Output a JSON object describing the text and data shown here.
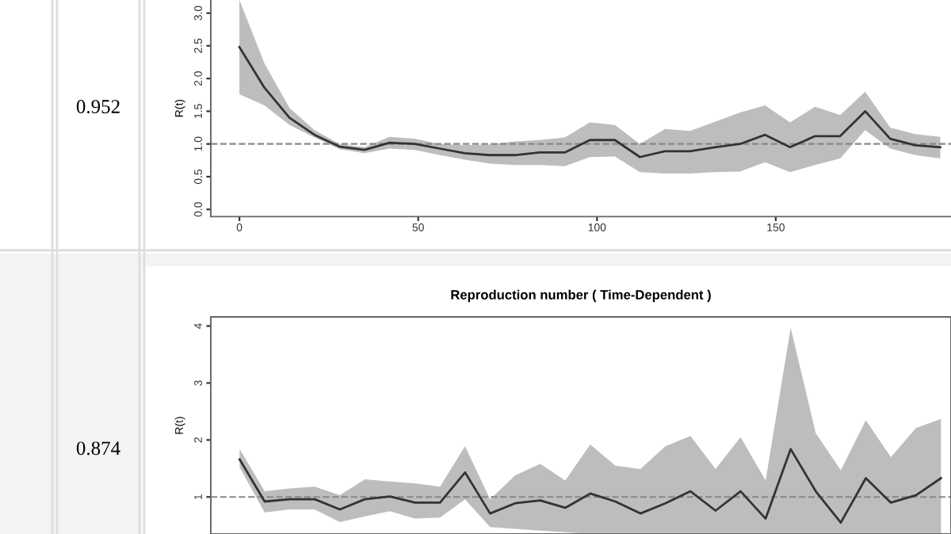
{
  "chart_data": [
    {
      "type": "line",
      "ylabel": "R(t)",
      "annotations": [
        "0.952"
      ],
      "x": [
        0,
        7,
        14,
        21,
        28,
        35,
        42,
        49,
        56,
        63,
        70,
        77,
        84,
        91,
        98,
        105,
        112,
        119,
        126,
        133,
        140,
        147,
        154,
        161,
        168,
        175,
        182,
        189,
        196
      ],
      "series": [
        {
          "color": "#333333",
          "values": [
            2.48,
            1.86,
            1.4,
            1.14,
            0.96,
            0.91,
            1.02,
            1.0,
            0.93,
            0.86,
            0.83,
            0.83,
            0.87,
            0.87,
            1.06,
            1.06,
            0.8,
            0.89,
            0.89,
            0.95,
            1.0,
            1.14,
            0.95,
            1.12,
            1.12,
            1.5,
            1.08,
            0.98,
            0.95
          ],
          "lower": [
            1.76,
            1.59,
            1.29,
            1.1,
            0.92,
            0.86,
            0.93,
            0.91,
            0.83,
            0.76,
            0.7,
            0.68,
            0.68,
            0.66,
            0.8,
            0.81,
            0.57,
            0.55,
            0.55,
            0.57,
            0.58,
            0.72,
            0.57,
            0.68,
            0.78,
            1.21,
            0.93,
            0.83,
            0.78
          ],
          "upper": [
            3.2,
            2.23,
            1.55,
            1.21,
            1.0,
            0.95,
            1.11,
            1.08,
            1.0,
            0.98,
            0.99,
            1.04,
            1.06,
            1.1,
            1.33,
            1.29,
            1.0,
            1.23,
            1.2,
            1.34,
            1.48,
            1.59,
            1.33,
            1.57,
            1.44,
            1.8,
            1.25,
            1.15,
            1.11
          ]
        }
      ],
      "xlim": [
        -8,
        199
      ],
      "xticks": [
        0,
        50,
        100,
        150
      ],
      "ylim": [
        -0.11,
        3.2
      ],
      "yticks": [
        {
          "value": 0,
          "label": "0.0"
        },
        0.5,
        {
          "value": 1,
          "label": "1.0"
        },
        1.5,
        {
          "value": 2,
          "label": "2.0"
        },
        2.5,
        {
          "value": 3,
          "label": "3.0"
        }
      ],
      "ref_lines": [
        {
          "axis": "y",
          "value": 1,
          "color": "#888888",
          "line_style": "dashed"
        }
      ],
      "grid": false,
      "legend": false
    },
    {
      "type": "line",
      "title": "Reproduction number ( Time-Dependent )",
      "ylabel": "R(t)",
      "annotations": [
        "0.874"
      ],
      "tick_labels": "y",
      "categories": [
        null,
        null,
        null,
        null,
        null,
        null,
        null,
        null,
        null,
        null,
        null,
        null,
        null,
        null,
        null,
        null,
        null,
        null,
        null,
        null,
        null,
        null,
        null,
        null,
        null,
        null,
        null,
        null,
        null
      ],
      "series": [
        {
          "color": "#333333",
          "values": [
            1.66,
            0.92,
            0.96,
            0.96,
            0.78,
            0.96,
            1.01,
            0.9,
            0.9,
            1.43,
            0.71,
            0.89,
            0.94,
            0.81,
            1.06,
            0.92,
            0.71,
            0.89,
            1.1,
            0.76,
            1.1,
            0.62,
            1.84,
            1.1,
            0.55,
            1.33,
            0.9,
            1.03,
            1.33
          ],
          "lower": [
            1.52,
            0.73,
            0.78,
            0.78,
            0.56,
            0.66,
            0.75,
            0.62,
            0.64,
            0.96,
            0.47,
            0.44,
            0.41,
            0.38,
            0.35,
            0.35,
            0.35,
            0.35,
            0.35,
            0.35,
            0.35,
            0.35,
            0.35,
            0.35,
            0.35,
            0.35,
            0.35,
            0.35,
            0.35
          ],
          "upper": [
            1.84,
            1.1,
            1.15,
            1.18,
            1.03,
            1.31,
            1.27,
            1.24,
            1.18,
            1.89,
            0.96,
            1.38,
            1.58,
            1.29,
            1.92,
            1.55,
            1.49,
            1.89,
            2.07,
            1.49,
            2.05,
            1.29,
            3.97,
            2.12,
            1.47,
            2.35,
            1.7,
            2.21,
            2.37
          ]
        }
      ],
      "ylim": [
        0.35,
        4.16
      ],
      "yticks": [
        1,
        2,
        3,
        4
      ],
      "ref_lines": [
        {
          "axis": "y",
          "value": 1,
          "color": "#888888",
          "line_style": "dashed"
        }
      ],
      "grid": false,
      "legend": false
    }
  ]
}
